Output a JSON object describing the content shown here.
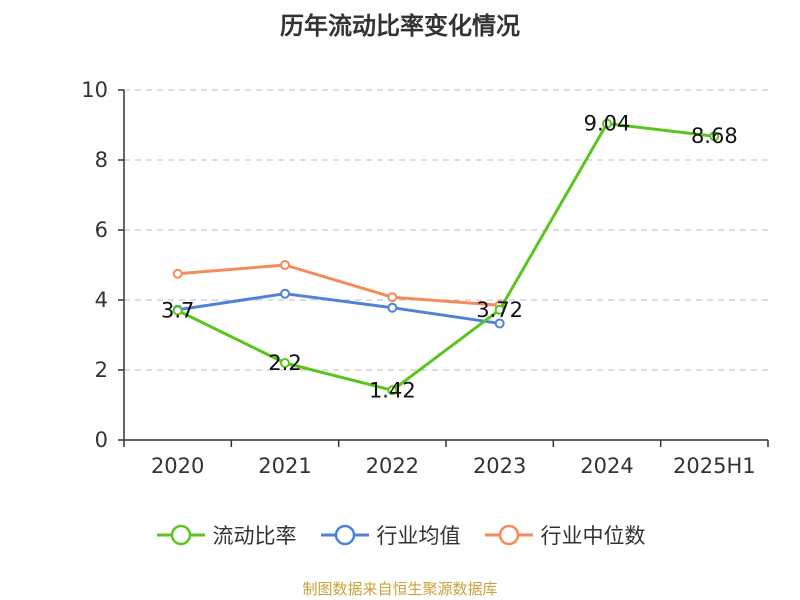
{
  "title": "历年流动比率变化情况",
  "source_note": "制图数据来自恒生聚源数据库",
  "colors": {
    "current_ratio": "#5cc41f",
    "industry_mean": "#4f81d8",
    "industry_median": "#f58b5b",
    "grid": "#bbbbbb",
    "axis": "#333333"
  },
  "chart_data": {
    "type": "line",
    "categories": [
      "2020",
      "2021",
      "2022",
      "2023",
      "2024",
      "2025H1"
    ],
    "ylim": [
      0,
      10
    ],
    "yticks": [
      0,
      2,
      4,
      6,
      8,
      10
    ],
    "grid": true,
    "legend_position": "bottom",
    "series": [
      {
        "name": "流动比率",
        "color_key": "current_ratio",
        "values": [
          3.7,
          2.2,
          1.42,
          3.72,
          9.04,
          8.68
        ],
        "labels": true
      },
      {
        "name": "行业均值",
        "color_key": "industry_mean",
        "values": [
          3.72,
          4.18,
          3.78,
          3.33,
          null,
          null
        ],
        "labels": false
      },
      {
        "name": "行业中位数",
        "color_key": "industry_median",
        "values": [
          4.75,
          5.0,
          4.08,
          3.85,
          null,
          null
        ],
        "labels": false
      }
    ]
  }
}
